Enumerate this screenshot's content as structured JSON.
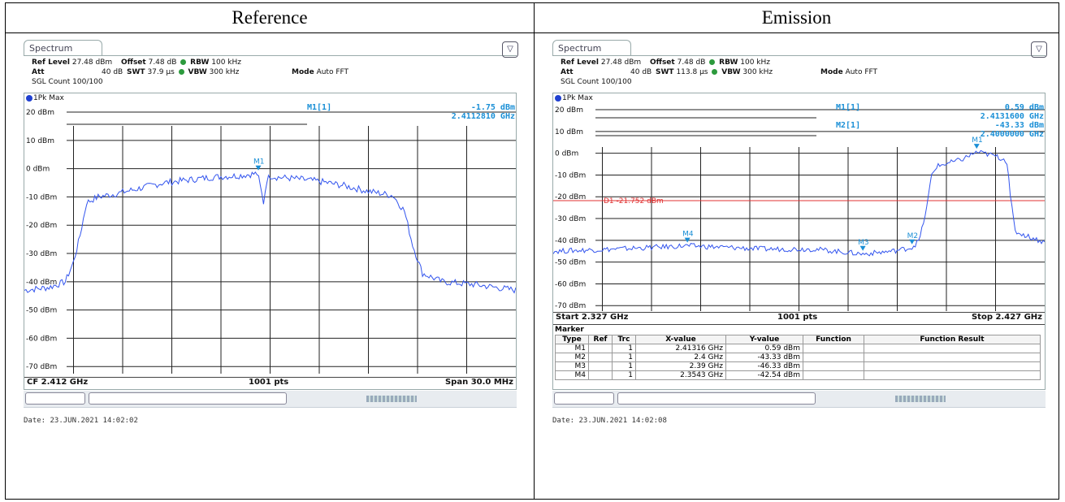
{
  "headers": {
    "left": "Reference",
    "right": "Emission"
  },
  "instrument": {
    "tab_label": "Spectrum",
    "labels": {
      "ref_level": "Ref Level",
      "att": "Att",
      "offset": "Offset",
      "swt": "SWT",
      "rbw": "RBW",
      "vbw": "VBW",
      "mode": "Mode"
    },
    "trace_label": "1Pk Max",
    "pts": "1001 pts"
  },
  "reference": {
    "settings": {
      "ref_level": "27.48 dBm",
      "att": "40 dB",
      "offset": "7.48 dB",
      "swt": "37.9 µs",
      "rbw": "100 kHz",
      "vbw": "300 kHz",
      "mode": "Auto FFT",
      "sgl_count": "SGL Count 100/100"
    },
    "marker_readout": {
      "name": "M1[1]",
      "level": "-1.75 dBm",
      "freq": "2.4112810 GHz"
    },
    "footer": {
      "left": "CF 2.412 GHz",
      "center": "1001 pts",
      "right": "Span 30.0 MHz"
    },
    "date": "Date: 23.JUN.2021  14:02:02"
  },
  "emission": {
    "settings": {
      "ref_level": "27.48 dBm",
      "att": "40 dB",
      "offset": "7.48 dB",
      "swt": "113.8 µs",
      "rbw": "100 kHz",
      "vbw": "300 kHz",
      "mode": "Auto FFT",
      "sgl_count": "SGL Count 100/100"
    },
    "marker_readouts": [
      {
        "name": "M1[1]",
        "level": "0.59 dBm",
        "freq": "2.4131600 GHz"
      },
      {
        "name": "M2[1]",
        "level": "-43.33 dBm",
        "freq": "2.4000000 GHz"
      }
    ],
    "display_line": "D1  -21.752 dBm",
    "footer": {
      "left": "Start 2.327 GHz",
      "center": "1001 pts",
      "right": "Stop 2.427 GHz"
    },
    "marker_table": {
      "title": "Marker",
      "columns": [
        "Type",
        "Ref",
        "Trc",
        "X-value",
        "Y-value",
        "Function",
        "Function Result"
      ],
      "rows": [
        [
          "M1",
          "",
          "1",
          "2.41316 GHz",
          "0.59 dBm",
          "",
          ""
        ],
        [
          "M2",
          "",
          "1",
          "2.4 GHz",
          "-43.33 dBm",
          "",
          ""
        ],
        [
          "M3",
          "",
          "1",
          "2.39 GHz",
          "-46.33 dBm",
          "",
          ""
        ],
        [
          "M4",
          "",
          "1",
          "2.3543 GHz",
          "-42.54 dBm",
          "",
          ""
        ]
      ]
    },
    "date": "Date: 23.JUN.2021  14:02:08"
  },
  "chart_data": [
    {
      "type": "line",
      "title": "",
      "xlabel": "",
      "ylabel": "",
      "xlim": [
        2.397,
        2.427
      ],
      "ylim": [
        -72.52,
        27.48
      ],
      "yticks": [
        20,
        10,
        0,
        -10,
        -20,
        -30,
        -40,
        -50,
        -60,
        -70
      ],
      "ytick_labels": [
        "20 dBm",
        "10 dBm",
        "0 dBm",
        "-10 dBm",
        "-20 dBm",
        "-30 dBm",
        "-40 dBm",
        "-50 dBm",
        "-60 dBm",
        "-70 dBm"
      ],
      "grid": true,
      "series": [
        {
          "name": "1Pk Max",
          "color": "#3355ee",
          "x": [
            2.397,
            2.3985,
            2.3995,
            2.4,
            2.40035,
            2.4008,
            2.4015,
            2.4025,
            2.404,
            2.4055,
            2.407,
            2.4085,
            2.41,
            2.4108,
            2.4112,
            2.41128,
            2.4116,
            2.4118,
            2.412,
            2.4124,
            2.4135,
            2.415,
            2.4165,
            2.418,
            2.4195,
            2.4202,
            2.4207,
            2.4213,
            2.4225,
            2.4245,
            2.427
          ],
          "y": [
            -43,
            -42,
            -40,
            -33,
            -25,
            -12,
            -10,
            -9,
            -7,
            -5,
            -4,
            -3,
            -2.5,
            -2,
            -1.75,
            -3,
            -12,
            -4,
            -2.5,
            -3,
            -3.5,
            -4.5,
            -6,
            -8,
            -9.5,
            -15,
            -27,
            -37,
            -40,
            -41,
            -43
          ]
        }
      ],
      "markers": [
        {
          "name": "M1",
          "x": 2.411281,
          "y": -1.75
        }
      ]
    },
    {
      "type": "line",
      "title": "",
      "xlabel": "",
      "ylabel": "",
      "xlim": [
        2.327,
        2.427
      ],
      "ylim": [
        -72.52,
        27.48
      ],
      "yticks": [
        20,
        10,
        0,
        -10,
        -20,
        -30,
        -40,
        -50,
        -60,
        -70
      ],
      "ytick_labels": [
        "20 dBm",
        "10 dBm",
        "0 dBm",
        "-10 dBm",
        "-20 dBm",
        "-30 dBm",
        "-40 dBm",
        "-50 dBm",
        "-60 dBm",
        "-70 dBm"
      ],
      "grid": true,
      "display_line_dbm": -21.752,
      "series": [
        {
          "name": "1Pk Max",
          "color": "#3355ee",
          "x": [
            2.327,
            2.34,
            2.3543,
            2.37,
            2.38,
            2.39,
            2.396,
            2.4,
            2.4015,
            2.403,
            2.404,
            2.405,
            2.41,
            2.41316,
            2.4165,
            2.419,
            2.4195,
            2.42,
            2.421,
            2.427
          ],
          "y": [
            -45,
            -44,
            -42.5,
            -44,
            -44,
            -46.3,
            -45,
            -43.3,
            -40,
            -25,
            -10,
            -6,
            -3,
            0.59,
            -1,
            -3,
            -5,
            -20,
            -36,
            -41
          ]
        }
      ],
      "markers": [
        {
          "name": "M1",
          "x": 2.41316,
          "y": 0.59
        },
        {
          "name": "M2",
          "x": 2.4,
          "y": -43.33
        },
        {
          "name": "M3",
          "x": 2.39,
          "y": -46.33
        },
        {
          "name": "M4",
          "x": 2.3543,
          "y": -42.54
        }
      ]
    }
  ]
}
